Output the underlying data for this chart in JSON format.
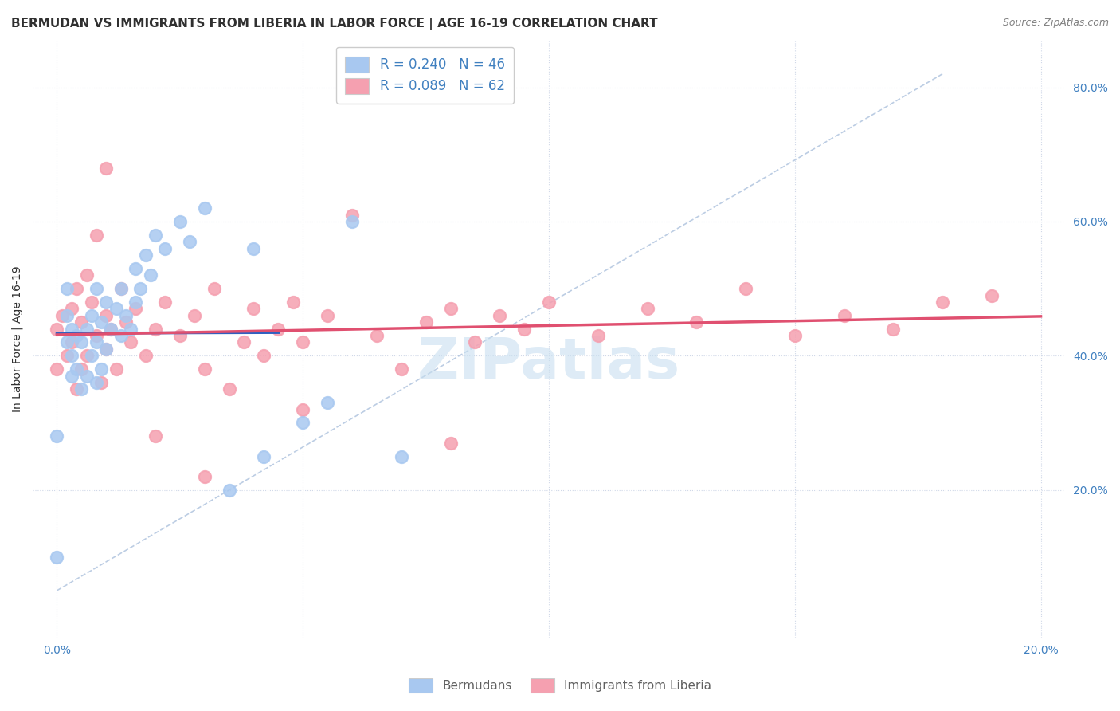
{
  "title": "BERMUDAN VS IMMIGRANTS FROM LIBERIA IN LABOR FORCE | AGE 16-19 CORRELATION CHART",
  "source": "Source: ZipAtlas.com",
  "ylabel": "In Labor Force | Age 16-19",
  "xlim": [
    -0.005,
    0.205
  ],
  "ylim": [
    -0.02,
    0.87
  ],
  "xticks": [
    0.0,
    0.05,
    0.1,
    0.15,
    0.2
  ],
  "xtick_labels": [
    "0.0%",
    "",
    "",
    "",
    "20.0%"
  ],
  "ytick_labels_right": [
    "20.0%",
    "40.0%",
    "60.0%",
    "80.0%"
  ],
  "ytick_positions_right": [
    0.2,
    0.4,
    0.6,
    0.8
  ],
  "blue_color": "#a8c8f0",
  "pink_color": "#f5a0b0",
  "blue_line_color": "#3060c0",
  "pink_line_color": "#e05070",
  "dashed_line_color": "#a0b8d8",
  "legend_r_blue": "R = 0.240",
  "legend_n_blue": "N = 46",
  "legend_r_pink": "R = 0.089",
  "legend_n_pink": "N = 62",
  "watermark": "ZIPatlas",
  "watermark_color": "#c8dff0",
  "blue_scatter_x": [
    0.0,
    0.0,
    0.002,
    0.002,
    0.002,
    0.003,
    0.003,
    0.003,
    0.004,
    0.004,
    0.005,
    0.005,
    0.006,
    0.006,
    0.007,
    0.007,
    0.008,
    0.008,
    0.008,
    0.009,
    0.009,
    0.01,
    0.01,
    0.011,
    0.012,
    0.013,
    0.013,
    0.014,
    0.015,
    0.016,
    0.016,
    0.017,
    0.018,
    0.019,
    0.02,
    0.022,
    0.025,
    0.027,
    0.03,
    0.035,
    0.04,
    0.042,
    0.05,
    0.055,
    0.06,
    0.07
  ],
  "blue_scatter_y": [
    0.1,
    0.28,
    0.42,
    0.46,
    0.5,
    0.37,
    0.4,
    0.44,
    0.38,
    0.43,
    0.35,
    0.42,
    0.37,
    0.44,
    0.4,
    0.46,
    0.36,
    0.42,
    0.5,
    0.38,
    0.45,
    0.41,
    0.48,
    0.44,
    0.47,
    0.43,
    0.5,
    0.46,
    0.44,
    0.48,
    0.53,
    0.5,
    0.55,
    0.52,
    0.58,
    0.56,
    0.6,
    0.57,
    0.62,
    0.2,
    0.56,
    0.25,
    0.3,
    0.33,
    0.6,
    0.25
  ],
  "pink_scatter_x": [
    0.0,
    0.0,
    0.001,
    0.002,
    0.003,
    0.003,
    0.004,
    0.004,
    0.005,
    0.005,
    0.006,
    0.006,
    0.007,
    0.008,
    0.008,
    0.009,
    0.01,
    0.01,
    0.011,
    0.012,
    0.013,
    0.014,
    0.015,
    0.016,
    0.018,
    0.02,
    0.022,
    0.025,
    0.028,
    0.03,
    0.032,
    0.035,
    0.038,
    0.04,
    0.042,
    0.045,
    0.048,
    0.05,
    0.055,
    0.06,
    0.065,
    0.07,
    0.075,
    0.08,
    0.085,
    0.09,
    0.095,
    0.1,
    0.11,
    0.12,
    0.13,
    0.14,
    0.15,
    0.16,
    0.17,
    0.18,
    0.19,
    0.01,
    0.02,
    0.03,
    0.05,
    0.08
  ],
  "pink_scatter_y": [
    0.38,
    0.44,
    0.46,
    0.4,
    0.42,
    0.47,
    0.35,
    0.5,
    0.38,
    0.45,
    0.52,
    0.4,
    0.48,
    0.43,
    0.58,
    0.36,
    0.41,
    0.46,
    0.44,
    0.38,
    0.5,
    0.45,
    0.42,
    0.47,
    0.4,
    0.44,
    0.48,
    0.43,
    0.46,
    0.38,
    0.5,
    0.35,
    0.42,
    0.47,
    0.4,
    0.44,
    0.48,
    0.42,
    0.46,
    0.61,
    0.43,
    0.38,
    0.45,
    0.47,
    0.42,
    0.46,
    0.44,
    0.48,
    0.43,
    0.47,
    0.45,
    0.5,
    0.43,
    0.46,
    0.44,
    0.48,
    0.49,
    0.68,
    0.28,
    0.22,
    0.32,
    0.27
  ],
  "background_color": "#ffffff",
  "grid_color": "#d0d8e8",
  "title_color": "#303030",
  "tick_color": "#4080c0"
}
